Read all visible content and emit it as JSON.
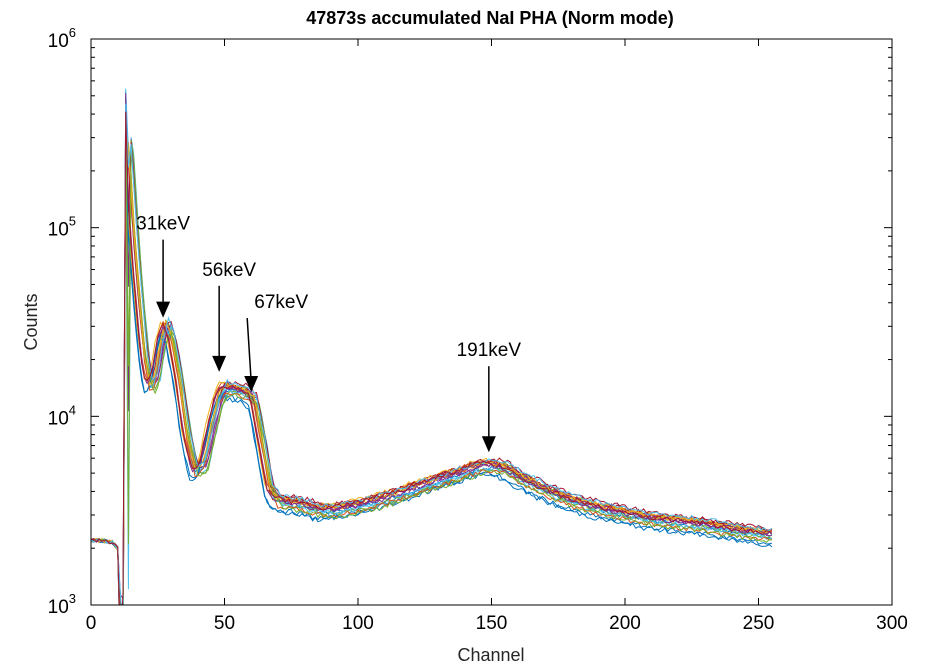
{
  "chart_data": {
    "type": "line",
    "title": "47873s accumulated NaI PHA (Norm mode)",
    "xlabel": "Channel",
    "ylabel": "Counts",
    "xlim": [
      0,
      300
    ],
    "ylim": [
      1000,
      1000000
    ],
    "yscale": "log",
    "grid": false,
    "legend": "none",
    "x_ticks": [
      "0",
      "50",
      "100",
      "150",
      "200",
      "250",
      "300"
    ],
    "y_ticks": [
      {
        "base": "10",
        "exp": "3",
        "value": 1000
      },
      {
        "base": "10",
        "exp": "4",
        "value": 10000
      },
      {
        "base": "10",
        "exp": "5",
        "value": 100000
      },
      {
        "base": "10",
        "exp": "6",
        "value": 1000000
      }
    ],
    "series_count": 21,
    "series_colors": [
      "#0072BD",
      "#D95319",
      "#EDB120",
      "#7E2F8E",
      "#77AC30",
      "#4DBEEE",
      "#A2142F",
      "#0072BD",
      "#D95319",
      "#EDB120",
      "#7E2F8E",
      "#77AC30",
      "#4DBEEE",
      "#A2142F",
      "#0072BD",
      "#D95319",
      "#EDB120",
      "#7E2F8E",
      "#77AC30",
      "#4DBEEE",
      "#A2142F"
    ],
    "representative_spectrum": {
      "channel": [
        0,
        4,
        8,
        10,
        11,
        12,
        13,
        14,
        16,
        18,
        20,
        22,
        24,
        26,
        28,
        30,
        33,
        36,
        39,
        42,
        45,
        48,
        50,
        52,
        55,
        58,
        61,
        64,
        67,
        70,
        75,
        80,
        85,
        90,
        100,
        110,
        120,
        130,
        140,
        145,
        150,
        155,
        160,
        170,
        180,
        190,
        200,
        210,
        220,
        230,
        240,
        250,
        255
      ],
      "counts": [
        2200,
        2200,
        2150,
        2000,
        1600,
        1000,
        300000,
        250000,
        90000,
        40000,
        20000,
        14000,
        16000,
        24000,
        30000,
        26000,
        15000,
        7500,
        5000,
        5400,
        8500,
        12500,
        14000,
        13800,
        13500,
        13200,
        12000,
        7000,
        4000,
        3500,
        3400,
        3300,
        3150,
        3100,
        3300,
        3600,
        4000,
        4500,
        5000,
        5300,
        5400,
        5200,
        4700,
        4000,
        3500,
        3200,
        3000,
        2800,
        2700,
        2600,
        2450,
        2350,
        2300
      ]
    },
    "annotations": [
      {
        "label": "31keV",
        "channel": 27,
        "counts": 31000
      },
      {
        "label": "56keV",
        "channel": 48,
        "counts": 16000
      },
      {
        "label": "67keV",
        "channel": 60,
        "counts": 12500
      },
      {
        "label": "191keV",
        "channel": 149,
        "counts": 6000
      }
    ]
  }
}
